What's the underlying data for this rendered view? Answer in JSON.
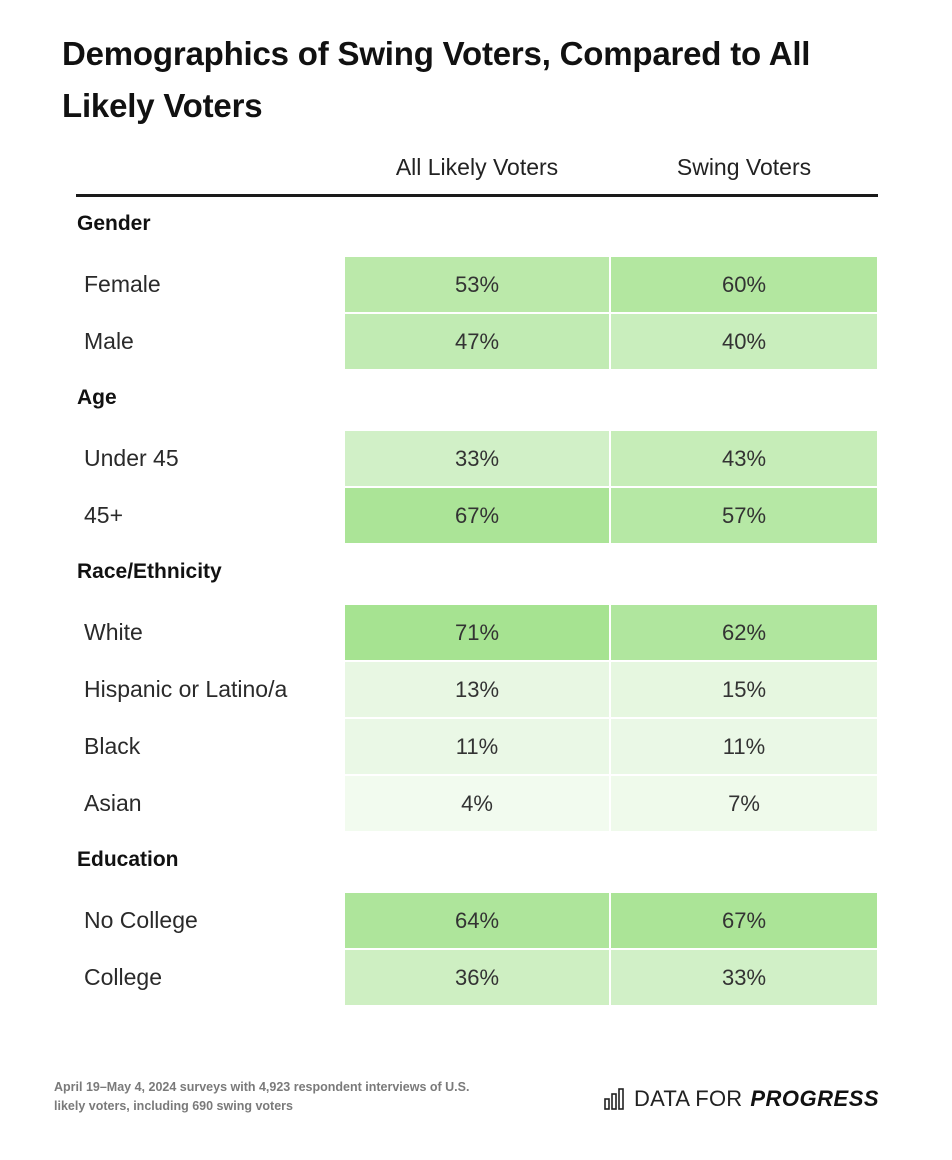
{
  "title": "Demographics of Swing Voters, Compared to All Likely Voters",
  "columns": [
    "All Likely Voters",
    "Swing Voters"
  ],
  "chart_data": {
    "type": "table",
    "title": "Demographics of Swing Voters, Compared to All Likely Voters",
    "columns": [
      "All Likely Voters",
      "Swing Voters"
    ],
    "color_scale": {
      "low": "#f7fcf5",
      "high": "#a6e391"
    },
    "sections": [
      {
        "name": "Gender",
        "rows": [
          {
            "label": "Female",
            "values": [
              53,
              60
            ]
          },
          {
            "label": "Male",
            "values": [
              47,
              40
            ]
          }
        ]
      },
      {
        "name": "Age",
        "rows": [
          {
            "label": "Under 45",
            "values": [
              33,
              43
            ]
          },
          {
            "label": "45+",
            "values": [
              67,
              57
            ]
          }
        ]
      },
      {
        "name": "Race/Ethnicity",
        "rows": [
          {
            "label": "White",
            "values": [
              71,
              62
            ]
          },
          {
            "label": "Hispanic or Latino/a",
            "values": [
              13,
              15
            ]
          },
          {
            "label": "Black",
            "values": [
              11,
              11
            ]
          },
          {
            "label": "Asian",
            "values": [
              4,
              7
            ]
          }
        ]
      },
      {
        "name": "Education",
        "rows": [
          {
            "label": "No College",
            "values": [
              64,
              67
            ]
          },
          {
            "label": "College",
            "values": [
              36,
              33
            ]
          }
        ]
      }
    ]
  },
  "footnote": "April 19–May 4, 2024 surveys with 4,923 respondent interviews of U.S. likely voters, including 690 swing voters",
  "brand": {
    "icon": "bar-chart-icon",
    "name_regular": "DATA FOR",
    "name_bold": "PROGRESS"
  }
}
